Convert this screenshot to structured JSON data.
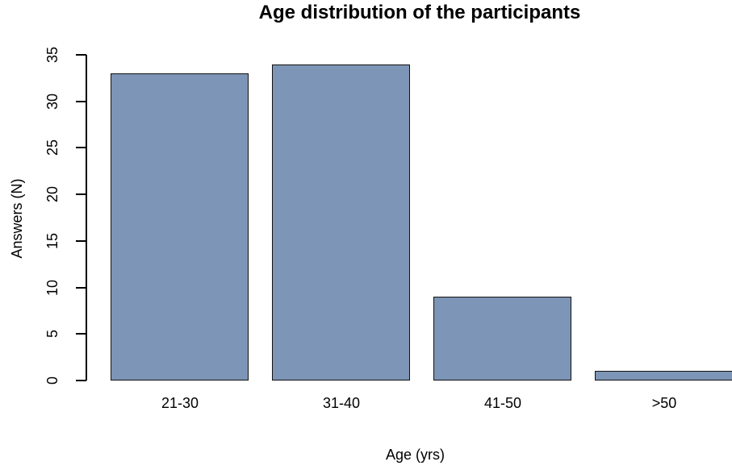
{
  "chart_data": {
    "type": "bar",
    "title": "Age distribution of the participants",
    "xlabel": "Age (yrs)",
    "ylabel": "Answers (N)",
    "categories": [
      "21-30",
      "31-40",
      "41-50",
      ">50"
    ],
    "values": [
      33,
      34,
      9,
      1
    ],
    "ylim": [
      0,
      35
    ],
    "yticks": [
      0,
      5,
      10,
      15,
      20,
      25,
      30,
      35
    ],
    "grid": false,
    "legend_position": "none",
    "bar_fill_color": "#7D95B6",
    "bar_border_color": "#121212",
    "axis_color": "#000000"
  }
}
